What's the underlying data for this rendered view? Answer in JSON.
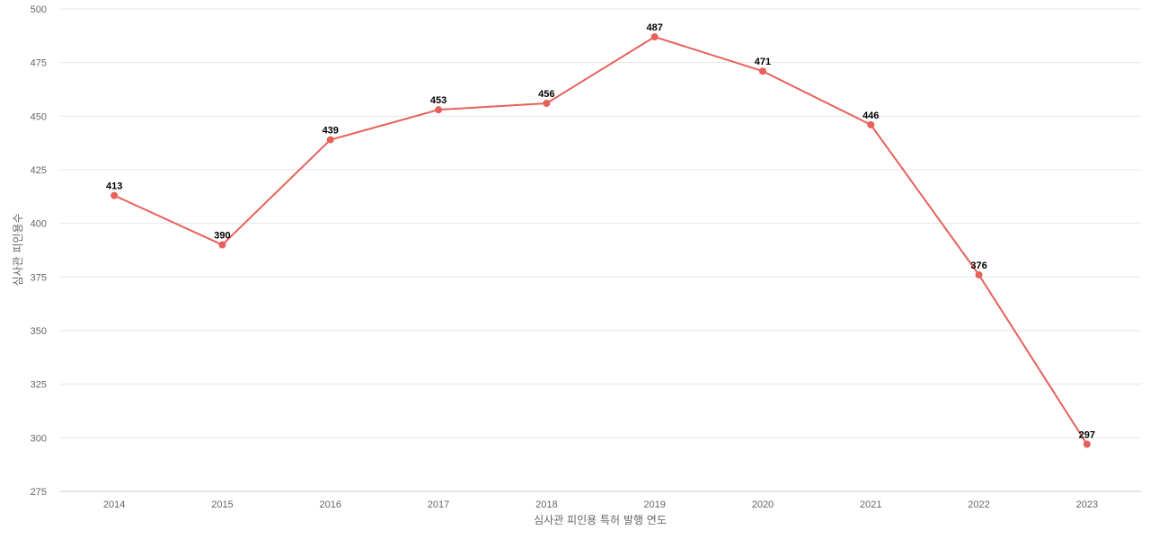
{
  "chart_data": {
    "type": "line",
    "xlabel": "심사관 피인용 특허 발행 연도",
    "ylabel": "심사관 피인용수",
    "ylim": [
      275,
      500
    ],
    "yticks": [
      275,
      300,
      325,
      350,
      375,
      400,
      425,
      450,
      475,
      500
    ],
    "grid": true,
    "x": [
      "2014",
      "2015",
      "2016",
      "2017",
      "2018",
      "2019",
      "2020",
      "2021",
      "2022",
      "2023"
    ],
    "series": [
      {
        "values": [
          413,
          390,
          439,
          453,
          456,
          487,
          471,
          446,
          376,
          297
        ],
        "color": "#e8605a"
      }
    ]
  }
}
